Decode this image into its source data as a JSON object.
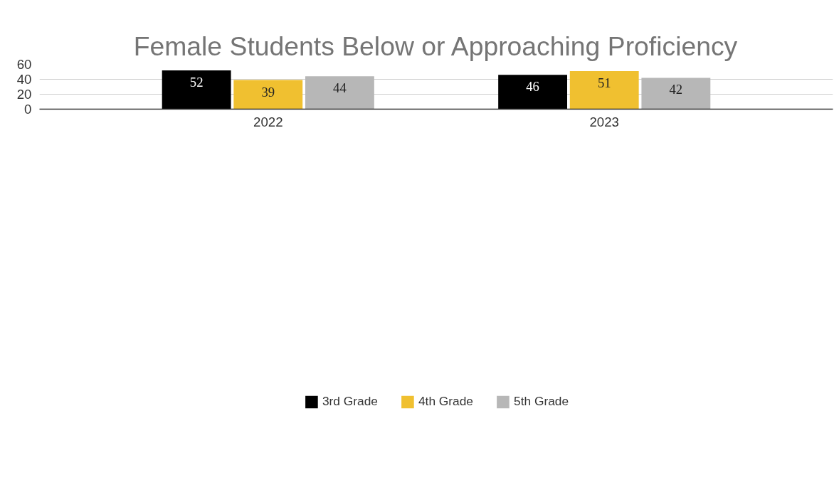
{
  "chart_data": {
    "type": "bar",
    "title": "Female Students Below or Approaching Proficiency",
    "categories": [
      "2022",
      "2023"
    ],
    "series": [
      {
        "name": "3rd Grade",
        "color": "#000000",
        "values": [
          52,
          46
        ]
      },
      {
        "name": "4th Grade",
        "color": "#f0c030",
        "values": [
          39,
          51
        ]
      },
      {
        "name": "5th Grade",
        "color": "#b7b7b7",
        "values": [
          44,
          42
        ]
      }
    ],
    "ylim": [
      0,
      60
    ],
    "yticks": [
      0,
      20,
      40,
      60
    ],
    "grid": "y",
    "legend": "bottom",
    "data_labels": true
  }
}
